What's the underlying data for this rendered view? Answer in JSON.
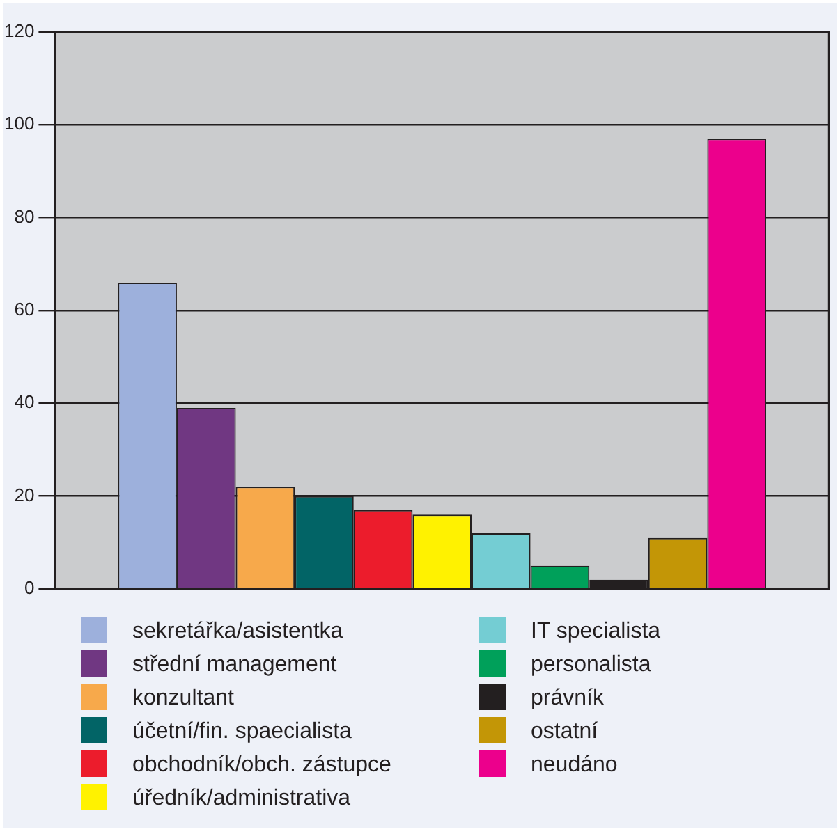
{
  "chart_data": {
    "type": "bar",
    "categories": [
      null
    ],
    "series": [
      {
        "name": "sekretářka/asistentka",
        "color": "#9db0dc",
        "values": [
          66
        ]
      },
      {
        "name": "střední management",
        "color": "#703782",
        "values": [
          39
        ]
      },
      {
        "name": "konzultant",
        "color": "#f7a94b",
        "values": [
          22
        ]
      },
      {
        "name": "účetní/fin. spaecialista",
        "color": "#026466",
        "values": [
          20
        ]
      },
      {
        "name": "obchodník/obch. zástupce",
        "color": "#ec1c2c",
        "values": [
          17
        ]
      },
      {
        "name": "úředník/administrativa",
        "color": "#fff200",
        "values": [
          16
        ]
      },
      {
        "name": "IT specialista",
        "color": "#74cdd3",
        "values": [
          12
        ]
      },
      {
        "name": "personalista",
        "color": "#00a05a",
        "values": [
          5
        ]
      },
      {
        "name": "právník",
        "color": "#231f20",
        "values": [
          2
        ]
      },
      {
        "name": "ostatní",
        "color": "#c39606",
        "values": [
          11
        ]
      },
      {
        "name": "neudáno",
        "color": "#ec008c",
        "values": [
          97
        ]
      }
    ],
    "ylim": [
      0,
      120
    ],
    "yticks": [
      0,
      20,
      40,
      60,
      80,
      100,
      120
    ],
    "grid": "y",
    "legend": "bottom",
    "tick_labels": "y"
  }
}
